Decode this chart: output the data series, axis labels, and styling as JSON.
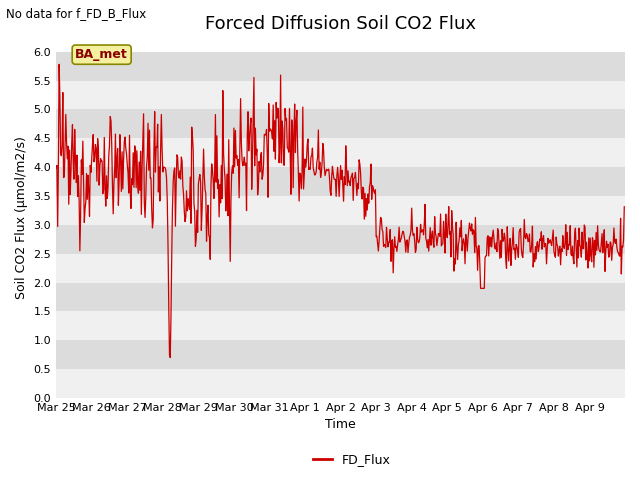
{
  "title": "Forced Diffusion Soil CO2 Flux",
  "top_left_text": "No data for f_FD_B_Flux",
  "ylabel": "Soil CO2 Flux (μmol/m2/s)",
  "xlabel": "Time",
  "legend_label": "FD_Flux",
  "legend_note": "BA_met",
  "ylim": [
    0.0,
    6.25
  ],
  "yticks": [
    0.0,
    0.5,
    1.0,
    1.5,
    2.0,
    2.5,
    3.0,
    3.5,
    4.0,
    4.5,
    5.0,
    5.5,
    6.0
  ],
  "line_color": "#cc0000",
  "band_light": "#f0f0f0",
  "band_dark": "#dcdcdc",
  "title_fontsize": 13,
  "label_fontsize": 9,
  "tick_fontsize": 8
}
